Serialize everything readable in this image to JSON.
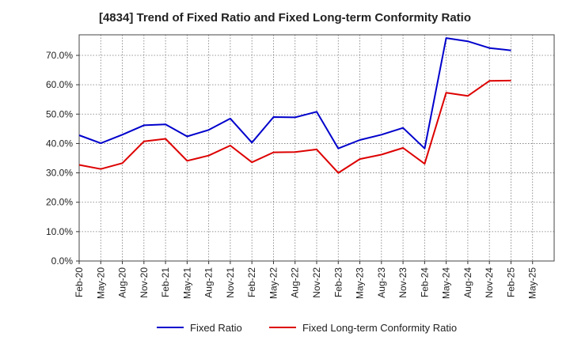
{
  "chart_data": {
    "type": "line",
    "title": "[4834]  Trend of Fixed Ratio and Fixed Long-term Conformity Ratio",
    "x": [
      "Feb-20",
      "May-20",
      "Aug-20",
      "Nov-20",
      "Feb-21",
      "May-21",
      "Aug-21",
      "Nov-21",
      "Feb-22",
      "May-22",
      "Aug-22",
      "Nov-22",
      "Feb-23",
      "May-23",
      "Aug-23",
      "Nov-23",
      "Feb-24",
      "May-24",
      "Aug-24",
      "Nov-24",
      "Feb-25",
      "May-25"
    ],
    "ylim": [
      0,
      77
    ],
    "yticks": [
      0,
      10,
      20,
      30,
      40,
      50,
      60,
      70
    ],
    "ytick_labels": [
      "0.0%",
      "10.0%",
      "20.0%",
      "30.0%",
      "40.0%",
      "50.0%",
      "60.0%",
      "70.0%"
    ],
    "grid": true,
    "legend_position": "bottom",
    "series": [
      {
        "name": "Fixed Ratio",
        "color": "#0000cc",
        "values": [
          42.8,
          40.1,
          43.0,
          46.2,
          46.5,
          42.4,
          44.6,
          48.5,
          40.3,
          49.0,
          48.9,
          50.8,
          38.3,
          41.2,
          43.0,
          45.3,
          38.3,
          75.9,
          74.8,
          72.5,
          71.7,
          null
        ]
      },
      {
        "name": "Fixed Long-term Conformity Ratio",
        "color": "#dd0000",
        "values": [
          32.7,
          31.3,
          33.3,
          40.7,
          41.6,
          34.1,
          35.9,
          39.3,
          33.6,
          37.0,
          37.1,
          38.0,
          30.0,
          34.7,
          36.2,
          38.5,
          33.1,
          57.3,
          56.2,
          61.3,
          61.4,
          null
        ]
      }
    ]
  }
}
